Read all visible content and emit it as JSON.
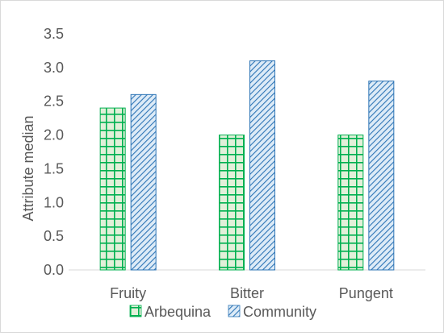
{
  "chart_data": {
    "type": "bar",
    "categories": [
      "Fruity",
      "Bitter",
      "Pungent"
    ],
    "series": [
      {
        "name": "Arbequina",
        "values": [
          2.4,
          2.0,
          2.0
        ],
        "fill_color": "#e2f0d9",
        "stroke_color": "#00b050",
        "pattern": "grid"
      },
      {
        "name": "Community",
        "values": [
          2.6,
          3.1,
          2.8
        ],
        "fill_color": "#ddebf7",
        "stroke_color": "#2e75b6",
        "pattern": "diagonal-stripes"
      }
    ],
    "ylabel": "Attribute median",
    "xlabel": "",
    "ylim": [
      0,
      3.5
    ],
    "yticks": [
      "0.0",
      "0.5",
      "1.0",
      "1.5",
      "2.0",
      "2.5",
      "3.0",
      "3.5"
    ],
    "grid": false,
    "legend_position": "bottom"
  }
}
